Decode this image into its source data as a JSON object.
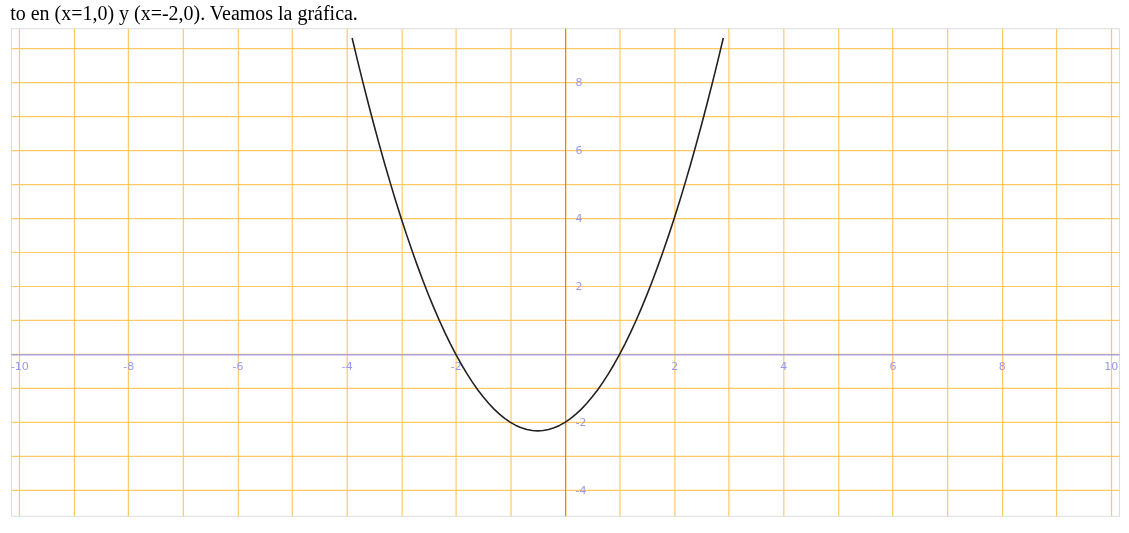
{
  "chart_data": {
    "type": "line",
    "title": "to en (x=1,0) y (x=-2,0). Veamos la gráfica.",
    "x": [
      -3.9,
      -3.8,
      -3.7,
      -3.6,
      -3.5,
      -3.4,
      -3.3,
      -3.2,
      -3.1,
      -3.0,
      -2.9,
      -2.8,
      -2.7,
      -2.6,
      -2.5,
      -2.4,
      -2.3,
      -2.2,
      -2.1,
      -2.0,
      -1.9,
      -1.8,
      -1.7,
      -1.6,
      -1.5,
      -1.4,
      -1.3,
      -1.2,
      -1.1,
      -1.0,
      -0.9,
      -0.8,
      -0.7,
      -0.6,
      -0.5,
      -0.4,
      -0.3,
      -0.2,
      -0.1,
      0,
      0.1,
      0.2,
      0.3,
      0.4,
      0.5,
      0.6,
      0.7,
      0.8,
      0.9,
      1.0,
      1.1,
      1.2,
      1.3,
      1.4,
      1.5,
      1.6,
      1.7,
      1.8,
      1.9,
      2.0,
      2.1,
      2.2,
      2.3,
      2.4,
      2.5,
      2.6,
      2.7,
      2.8,
      2.9
    ],
    "series": [
      {
        "color": "#222222",
        "values": [
          9.31,
          8.64,
          7.99,
          7.36,
          6.75,
          6.16,
          5.59,
          5.04,
          4.51,
          4,
          3.51,
          3.04,
          2.59,
          2.16,
          1.75,
          1.36,
          0.99,
          0.64,
          0.31,
          0,
          -0.29,
          -0.56,
          -0.81,
          -1.04,
          -1.25,
          -1.44,
          -1.61,
          -1.76,
          -1.89,
          -2,
          -2.09,
          -2.16,
          -2.21,
          -2.24,
          -2.25,
          -2.24,
          -2.21,
          -2.16,
          -2.09,
          -2,
          -1.89,
          -1.76,
          -1.61,
          -1.44,
          -1.25,
          -1.04,
          -0.81,
          -0.56,
          -0.29,
          0,
          0.31,
          0.64,
          0.99,
          1.36,
          1.75,
          2.16,
          2.59,
          3.04,
          3.51,
          4,
          4.51,
          5.04,
          5.59,
          6.16,
          6.75,
          7.36,
          7.99,
          8.64,
          9.31
        ]
      }
    ],
    "xlim": [
      -10.15,
      10.15
    ],
    "xticks": [
      -10,
      {
        "value": -9,
        "label": null
      },
      -8,
      {
        "value": -7,
        "label": null
      },
      -6,
      {
        "value": -5,
        "label": null
      },
      -4,
      {
        "value": -3,
        "label": null
      },
      -2,
      {
        "value": -1,
        "label": null
      },
      {
        "value": 0,
        "label": null
      },
      {
        "value": 1,
        "label": null
      },
      2,
      {
        "value": 3,
        "label": null
      },
      4,
      {
        "value": 5,
        "label": null
      },
      6,
      {
        "value": 7,
        "label": null
      },
      8,
      {
        "value": 9,
        "label": null
      },
      10
    ],
    "ylim": [
      -4.75,
      9.6
    ],
    "yticks": [
      -4,
      {
        "value": -3,
        "label": null
      },
      -2,
      {
        "value": -1,
        "label": null
      },
      {
        "value": 0,
        "label": null
      },
      {
        "value": 1,
        "label": null
      },
      2,
      {
        "value": 3,
        "label": null
      },
      4,
      {
        "value": 5,
        "label": null
      },
      6,
      {
        "value": 7,
        "label": null
      },
      8,
      {
        "value": 9,
        "label": null
      }
    ],
    "grid": true,
    "marker": "none",
    "line_style": "solid"
  }
}
